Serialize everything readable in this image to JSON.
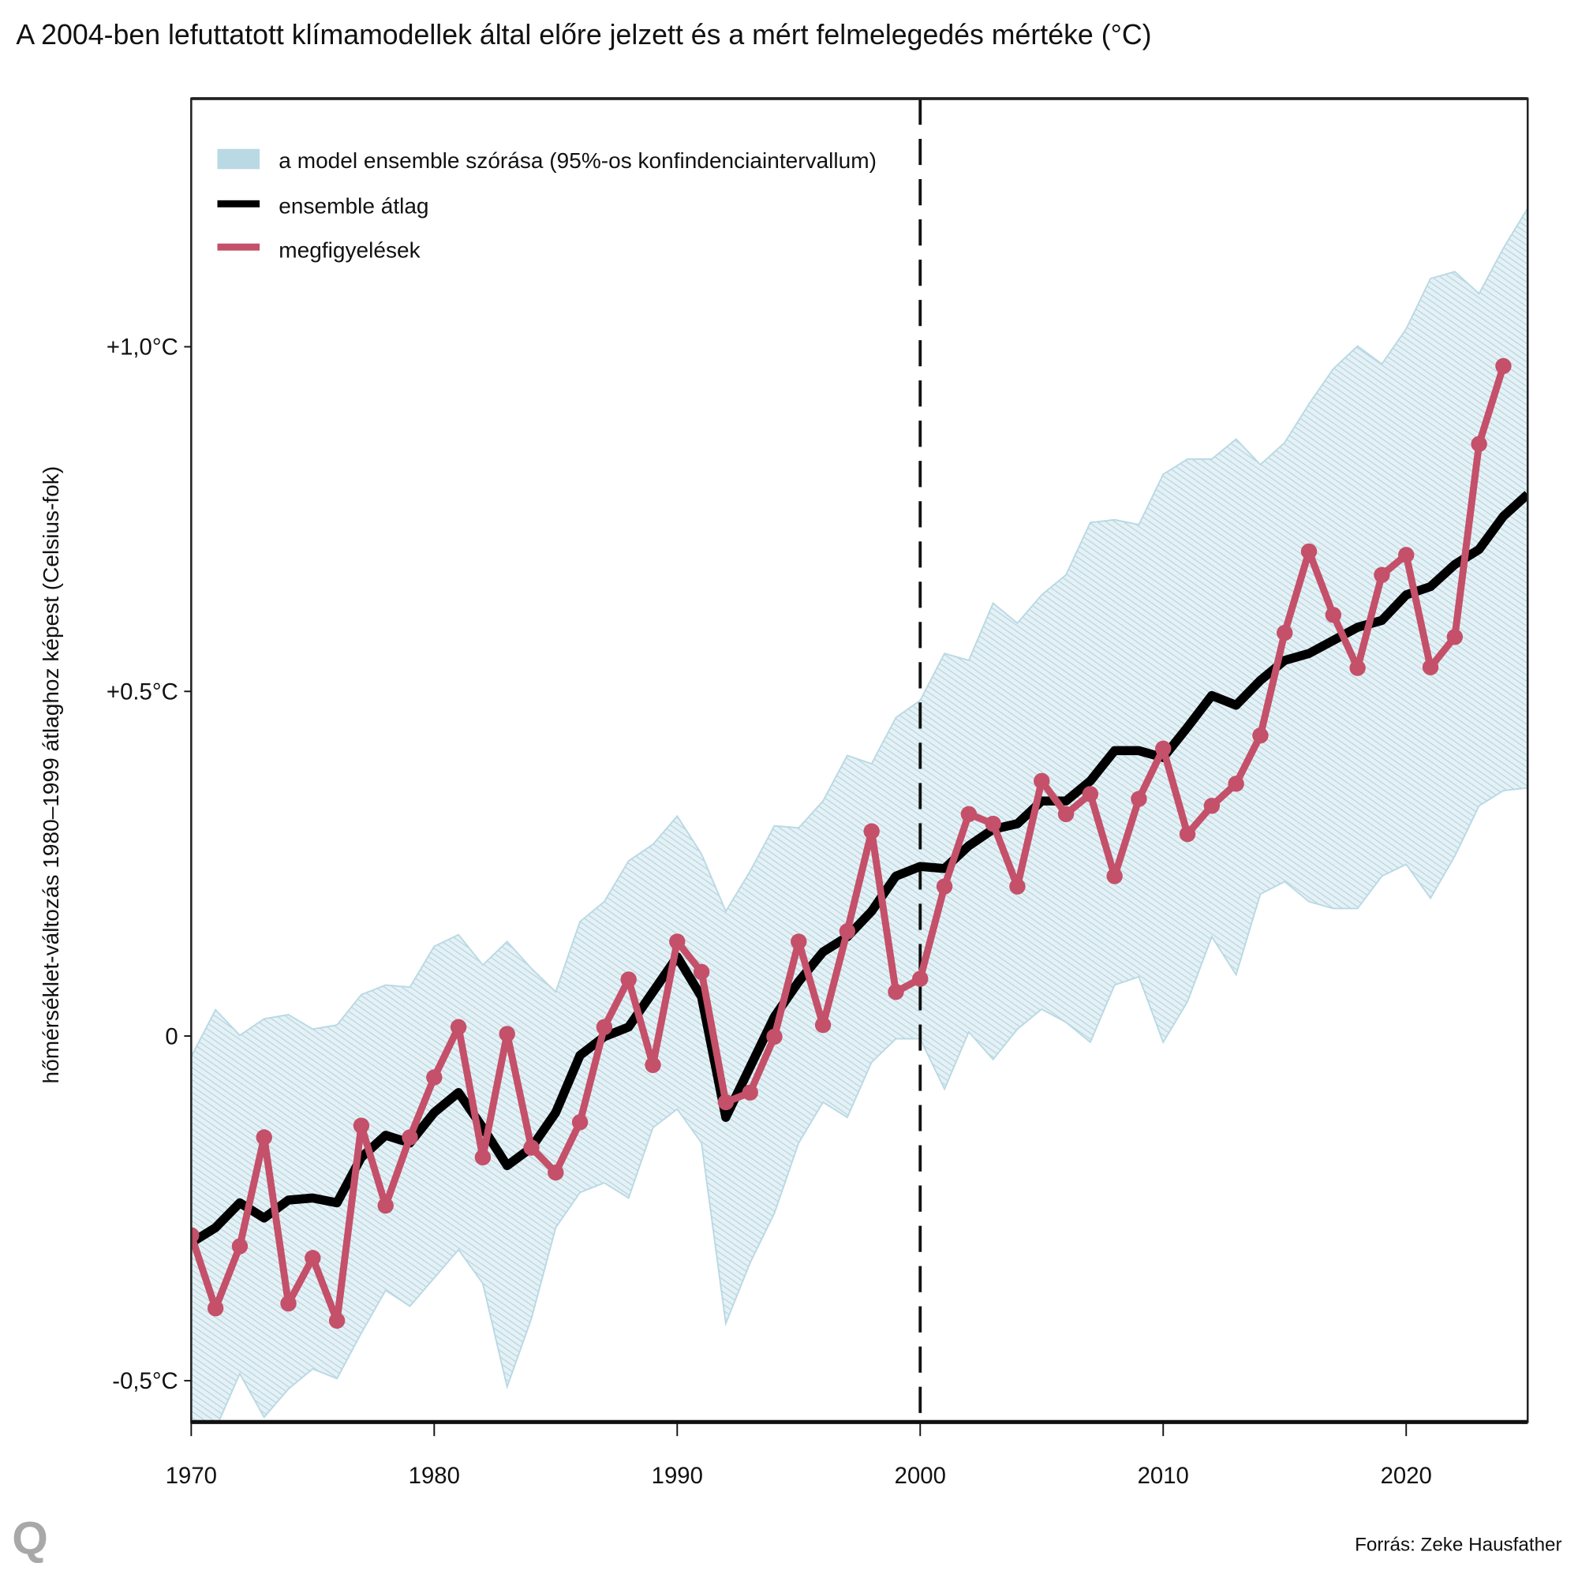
{
  "colors": {
    "band": "#b9d9e4",
    "mean": "#000000",
    "obs": "#c4506a"
  },
  "chart_data": {
    "type": "line",
    "title": "A 2004-ben lefuttatott klímamodellek által előre jelzett és a mért felmelegedés mértéke (°C)",
    "xlabel": "",
    "ylabel": "hőmérséklet-változás 1980–1999 átlaghoz képest (Celsius-fok)",
    "xlim": [
      1970,
      2025
    ],
    "ylim": [
      -0.56,
      1.36
    ],
    "x_ticks": [
      1970,
      1980,
      1990,
      2000,
      2010,
      2020
    ],
    "x_tick_labels": [
      "1970",
      "1980",
      "1990",
      "2000",
      "2010",
      "2020"
    ],
    "y_ticks": [
      -0.5,
      0,
      0.5,
      1.0
    ],
    "y_tick_labels": [
      "-0,5°C",
      "0",
      "+0.5°C",
      "+1,0°C"
    ],
    "vline_x": 2000,
    "legend": {
      "placement": "top-left",
      "entries": [
        "a model ensemble szórása (95%-os konfindenciaintervallum)",
        "ensemble átlag",
        "megfigyelések"
      ]
    },
    "band": {
      "name": "a model ensemble szórása (95%-os konfindenciaintervallum)",
      "x": [
        1970,
        1971,
        1972,
        1973,
        1974,
        1975,
        1976,
        1977,
        1978,
        1979,
        1980,
        1981,
        1982,
        1983,
        1984,
        1985,
        1986,
        1987,
        1988,
        1989,
        1990,
        1991,
        1992,
        1993,
        1994,
        1995,
        1996,
        1997,
        1998,
        1999,
        2000,
        2001,
        2002,
        2003,
        2004,
        2005,
        2006,
        2007,
        2008,
        2009,
        2010,
        2011,
        2012,
        2013,
        2014,
        2015,
        2016,
        2017,
        2018,
        2019,
        2020,
        2021,
        2022,
        2023,
        2024,
        2025
      ],
      "upper": [
        -0.03,
        0.038,
        0.001,
        0.025,
        0.031,
        0.01,
        0.016,
        0.06,
        0.074,
        0.071,
        0.13,
        0.147,
        0.103,
        0.137,
        0.098,
        0.064,
        0.166,
        0.195,
        0.254,
        0.278,
        0.319,
        0.264,
        0.181,
        0.239,
        0.305,
        0.302,
        0.341,
        0.407,
        0.395,
        0.462,
        0.487,
        0.555,
        0.545,
        0.628,
        0.599,
        0.64,
        0.669,
        0.745,
        0.749,
        0.742,
        0.815,
        0.837,
        0.837,
        0.866,
        0.829,
        0.861,
        0.917,
        0.968,
        1.001,
        0.975,
        1.026,
        1.099,
        1.109,
        1.077,
        1.143,
        1.201
      ],
      "lower": [
        -0.6,
        -0.57,
        -0.49,
        -0.553,
        -0.512,
        -0.483,
        -0.497,
        -0.431,
        -0.369,
        -0.392,
        -0.351,
        -0.31,
        -0.359,
        -0.509,
        -0.41,
        -0.278,
        -0.227,
        -0.213,
        -0.235,
        -0.133,
        -0.106,
        -0.155,
        -0.417,
        -0.329,
        -0.257,
        -0.155,
        -0.096,
        -0.118,
        -0.038,
        -0.004,
        -0.004,
        -0.077,
        0.006,
        -0.034,
        0.01,
        0.039,
        0.02,
        -0.009,
        0.074,
        0.086,
        -0.009,
        0.05,
        0.144,
        0.089,
        0.206,
        0.224,
        0.195,
        0.185,
        0.185,
        0.232,
        0.249,
        0.2,
        0.261,
        0.334,
        0.356,
        0.36
      ]
    },
    "series": [
      {
        "name": "ensemble átlag",
        "x": [
          1970,
          1971,
          1972,
          1973,
          1974,
          1975,
          1976,
          1977,
          1978,
          1979,
          1980,
          1981,
          1982,
          1983,
          1984,
          1985,
          1986,
          1987,
          1988,
          1989,
          1990,
          1991,
          1992,
          1993,
          1994,
          1995,
          1996,
          1997,
          1998,
          1999,
          2000,
          2001,
          2002,
          2003,
          2004,
          2005,
          2006,
          2007,
          2008,
          2009,
          2010,
          2011,
          2012,
          2013,
          2014,
          2015,
          2016,
          2017,
          2018,
          2019,
          2020,
          2021,
          2022,
          2023,
          2024,
          2025
        ],
        "values": [
          -0.3,
          -0.278,
          -0.242,
          -0.264,
          -0.238,
          -0.235,
          -0.242,
          -0.176,
          -0.144,
          -0.155,
          -0.111,
          -0.082,
          -0.133,
          -0.188,
          -0.162,
          -0.111,
          -0.028,
          -0.001,
          0.013,
          0.064,
          0.115,
          0.057,
          -0.118,
          -0.045,
          0.028,
          0.079,
          0.122,
          0.144,
          0.181,
          0.232,
          0.246,
          0.243,
          0.276,
          0.3,
          0.308,
          0.341,
          0.341,
          0.37,
          0.414,
          0.414,
          0.404,
          0.448,
          0.494,
          0.48,
          0.516,
          0.545,
          0.555,
          0.574,
          0.593,
          0.603,
          0.64,
          0.652,
          0.684,
          0.706,
          0.754,
          0.786
        ]
      },
      {
        "name": "megfigyelések",
        "x": [
          1970,
          1971,
          1972,
          1973,
          1974,
          1975,
          1976,
          1977,
          1978,
          1979,
          1980,
          1981,
          1982,
          1983,
          1984,
          1985,
          1986,
          1987,
          1988,
          1989,
          1990,
          1991,
          1992,
          1993,
          1994,
          1995,
          1996,
          1997,
          1998,
          1999,
          2000,
          2001,
          2002,
          2003,
          2004,
          2005,
          2006,
          2007,
          2008,
          2009,
          2010,
          2011,
          2012,
          2013,
          2014,
          2015,
          2016,
          2017,
          2018,
          2019,
          2020,
          2021,
          2022,
          2023,
          2024
        ],
        "values": [
          -0.289,
          -0.395,
          -0.305,
          -0.147,
          -0.388,
          -0.322,
          -0.413,
          -0.13,
          -0.246,
          -0.147,
          -0.06,
          0.013,
          -0.176,
          0.003,
          -0.162,
          -0.198,
          -0.125,
          0.013,
          0.082,
          -0.042,
          0.137,
          0.093,
          -0.096,
          -0.082,
          -0.001,
          0.137,
          0.016,
          0.152,
          0.297,
          0.064,
          0.083,
          0.217,
          0.322,
          0.308,
          0.217,
          0.37,
          0.322,
          0.351,
          0.232,
          0.344,
          0.417,
          0.293,
          0.334,
          0.366,
          0.436,
          0.585,
          0.703,
          0.611,
          0.534,
          0.669,
          0.698,
          0.535,
          0.579,
          0.859,
          0.972
        ]
      }
    ],
    "source": "Forrás: Zeke Hausfather",
    "logo": "Q"
  }
}
